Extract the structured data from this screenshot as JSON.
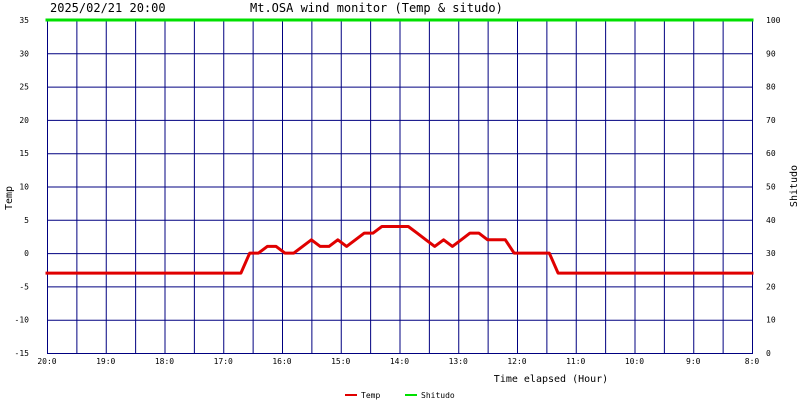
{
  "header": {
    "datetime": "2025/02/21 20:00",
    "title": "Mt.OSA wind monitor (Temp & situdo)"
  },
  "colors": {
    "grid": "#000080",
    "temp_line": "#e00000",
    "shitudo_line": "#00e000",
    "background": "#ffffff",
    "text": "#000000"
  },
  "chart_data": {
    "type": "line",
    "title": "Mt.OSA wind monitor (Temp & situdo)",
    "xlabel": "Time elapsed (Hour)",
    "ylabel_left": "Temp",
    "ylabel_right": "Shitudo",
    "ylim_left": [
      -15,
      35
    ],
    "ylim_right": [
      0,
      100
    ],
    "yticks_left": [
      "35",
      "30",
      "25",
      "20",
      "15",
      "10",
      "5",
      "0",
      "-5",
      "-10",
      "-15"
    ],
    "yticks_right": [
      "100",
      "90",
      "80",
      "70",
      "60",
      "50",
      "40",
      "30",
      "20",
      "10",
      "0"
    ],
    "xlim": [
      0,
      24
    ],
    "grid": true,
    "x_tick_labels": [
      {
        "label": "20:0",
        "x": 0
      },
      {
        "label": "19:0",
        "x": 2
      },
      {
        "label": "18:0",
        "x": 4
      },
      {
        "label": "17:0",
        "x": 6
      },
      {
        "label": "16:0",
        "x": 8
      },
      {
        "label": "15:0",
        "x": 10
      },
      {
        "label": "14:0",
        "x": 12
      },
      {
        "label": "13:0",
        "x": 14
      },
      {
        "label": "12:0",
        "x": 16
      },
      {
        "label": "11:0",
        "x": 18
      },
      {
        "label": "10:0",
        "x": 20
      },
      {
        "label": "9:0",
        "x": 22
      },
      {
        "label": "8:0",
        "x": 24
      }
    ],
    "series": [
      {
        "name": "Temp",
        "axis": "left",
        "color": "#e00000",
        "points": [
          [
            0,
            -3
          ],
          [
            6.6,
            -3
          ],
          [
            6.9,
            0
          ],
          [
            7.2,
            0
          ],
          [
            7.5,
            1
          ],
          [
            7.8,
            1
          ],
          [
            8.1,
            0
          ],
          [
            8.4,
            0
          ],
          [
            8.7,
            1
          ],
          [
            9.0,
            2
          ],
          [
            9.3,
            1
          ],
          [
            9.6,
            1
          ],
          [
            9.9,
            2
          ],
          [
            10.2,
            1
          ],
          [
            10.5,
            2
          ],
          [
            10.8,
            3
          ],
          [
            11.1,
            3
          ],
          [
            11.4,
            4
          ],
          [
            11.7,
            4
          ],
          [
            12.0,
            4
          ],
          [
            12.3,
            4
          ],
          [
            12.6,
            3
          ],
          [
            12.9,
            2
          ],
          [
            13.2,
            1
          ],
          [
            13.5,
            2
          ],
          [
            13.8,
            1
          ],
          [
            14.1,
            2
          ],
          [
            14.4,
            3
          ],
          [
            14.7,
            3
          ],
          [
            15.0,
            2
          ],
          [
            15.3,
            2
          ],
          [
            15.6,
            2
          ],
          [
            15.9,
            0
          ],
          [
            16.2,
            0
          ],
          [
            16.5,
            0
          ],
          [
            16.8,
            0
          ],
          [
            17.1,
            0
          ],
          [
            17.4,
            -3
          ],
          [
            24,
            -3
          ]
        ]
      },
      {
        "name": "Shitudo",
        "axis": "right",
        "color": "#00e000",
        "points": [
          [
            0,
            100
          ],
          [
            24,
            100
          ]
        ]
      }
    ],
    "legend": [
      {
        "name": "Temp",
        "color": "#e00000"
      },
      {
        "name": "Shitudo",
        "color": "#00e000"
      }
    ],
    "legend_position": "bottom-center"
  }
}
